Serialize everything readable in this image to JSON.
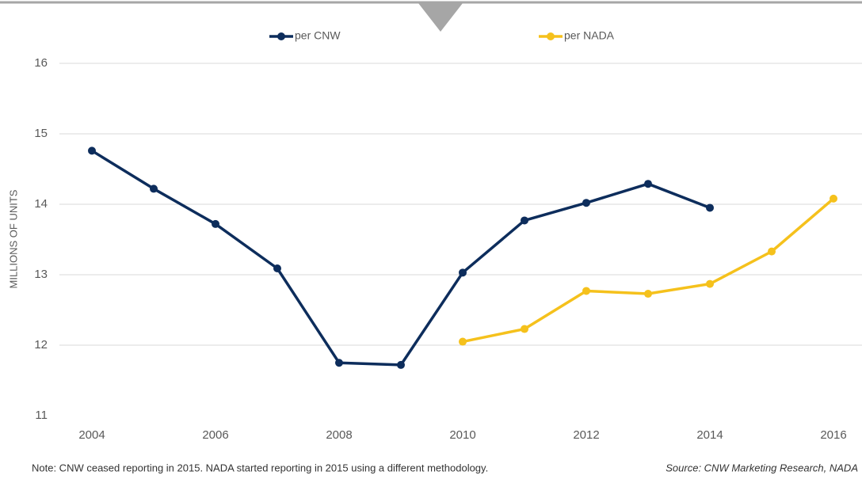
{
  "chart_data": {
    "type": "line",
    "y_label": "MILLIONS OF UNITS",
    "note": "Note: CNW ceased reporting in 2015. NADA started reporting in 2015 using a different methodology.",
    "source": "Source: CNW Marketing Research, NADA",
    "x": [
      2004,
      2005,
      2006,
      2007,
      2008,
      2009,
      2010,
      2011,
      2012,
      2013,
      2014,
      2015,
      2016
    ],
    "series": [
      {
        "name": "per CNW",
        "color": "#0d2d5c",
        "values": [
          14.76,
          14.22,
          13.72,
          13.09,
          11.75,
          11.72,
          13.03,
          13.77,
          14.02,
          14.29,
          13.95,
          null,
          null
        ]
      },
      {
        "name": "per NADA",
        "color": "#f5c11c",
        "values": [
          null,
          null,
          null,
          null,
          null,
          null,
          12.05,
          12.23,
          12.77,
          12.73,
          12.87,
          13.33,
          14.08
        ]
      }
    ],
    "xlim": [
      2003.5,
      2016.4
    ],
    "xticks": [
      2004,
      2006,
      2008,
      2010,
      2012,
      2014,
      2016
    ],
    "ylim": [
      11,
      16
    ],
    "yticks": [
      11,
      12,
      13,
      14,
      15,
      16
    ],
    "grid": true
  }
}
